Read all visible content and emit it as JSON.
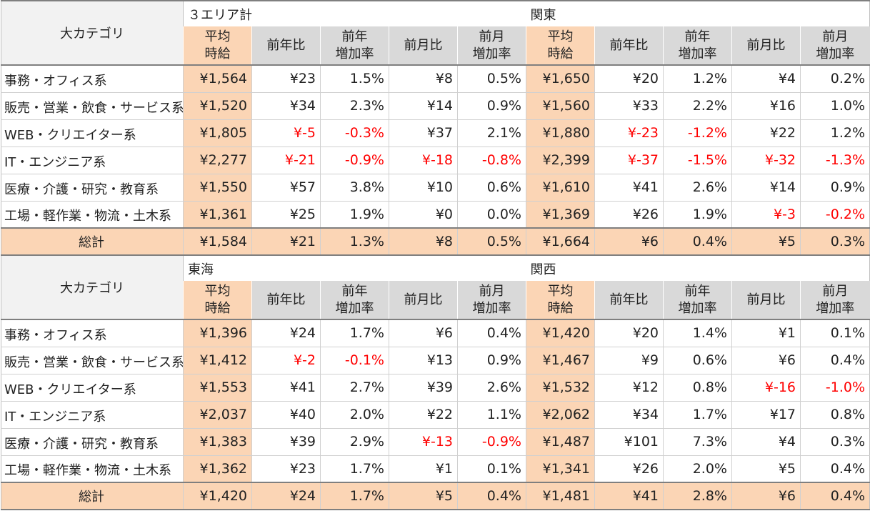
{
  "header": {
    "category_label": "大カテゴリ",
    "sub_headers": [
      "平均\n時給",
      "前年比",
      "前年\n増加率",
      "前月比",
      "前月\n増加率"
    ],
    "total_label": "総計"
  },
  "sections": [
    {
      "areas": [
        "３エリア計",
        "関東"
      ],
      "rows": [
        {
          "label": "事務・オフィス系",
          "values": [
            "¥1,564",
            "¥23",
            "1.5%",
            "¥8",
            "0.5%",
            "¥1,650",
            "¥20",
            "1.2%",
            "¥4",
            "0.2%"
          ]
        },
        {
          "label": "販売・営業・飲食・サービス系",
          "values": [
            "¥1,520",
            "¥34",
            "2.3%",
            "¥14",
            "0.9%",
            "¥1,560",
            "¥33",
            "2.2%",
            "¥16",
            "1.0%"
          ]
        },
        {
          "label": "WEB・クリエイター系",
          "values": [
            "¥1,805",
            "¥-5",
            "-0.3%",
            "¥37",
            "2.1%",
            "¥1,880",
            "¥-23",
            "-1.2%",
            "¥22",
            "1.2%"
          ]
        },
        {
          "label": "IT・エンジニア系",
          "values": [
            "¥2,277",
            "¥-21",
            "-0.9%",
            "¥-18",
            "-0.8%",
            "¥2,399",
            "¥-37",
            "-1.5%",
            "¥-32",
            "-1.3%"
          ]
        },
        {
          "label": "医療・介護・研究・教育系",
          "values": [
            "¥1,550",
            "¥57",
            "3.8%",
            "¥10",
            "0.6%",
            "¥1,610",
            "¥41",
            "2.6%",
            "¥14",
            "0.9%"
          ]
        },
        {
          "label": "工場・軽作業・物流・土木系",
          "values": [
            "¥1,361",
            "¥25",
            "1.9%",
            "¥0",
            "0.0%",
            "¥1,369",
            "¥26",
            "1.9%",
            "¥-3",
            "-0.2%"
          ]
        }
      ],
      "total": [
        "¥1,584",
        "¥21",
        "1.3%",
        "¥8",
        "0.5%",
        "¥1,664",
        "¥6",
        "0.4%",
        "¥5",
        "0.3%"
      ]
    },
    {
      "areas": [
        "東海",
        "関西"
      ],
      "rows": [
        {
          "label": "事務・オフィス系",
          "values": [
            "¥1,396",
            "¥24",
            "1.7%",
            "¥6",
            "0.4%",
            "¥1,420",
            "¥20",
            "1.4%",
            "¥1",
            "0.1%"
          ]
        },
        {
          "label": "販売・営業・飲食・サービス系",
          "values": [
            "¥1,412",
            "¥-2",
            "-0.1%",
            "¥13",
            "0.9%",
            "¥1,467",
            "¥9",
            "0.6%",
            "¥6",
            "0.4%"
          ]
        },
        {
          "label": "WEB・クリエイター系",
          "values": [
            "¥1,553",
            "¥41",
            "2.7%",
            "¥39",
            "2.6%",
            "¥1,532",
            "¥12",
            "0.8%",
            "¥-16",
            "-1.0%"
          ]
        },
        {
          "label": "IT・エンジニア系",
          "values": [
            "¥2,037",
            "¥40",
            "2.0%",
            "¥22",
            "1.1%",
            "¥2,062",
            "¥34",
            "1.7%",
            "¥17",
            "0.8%"
          ]
        },
        {
          "label": "医療・介護・研究・教育系",
          "values": [
            "¥1,383",
            "¥39",
            "2.9%",
            "¥-13",
            "-0.9%",
            "¥1,487",
            "¥101",
            "7.3%",
            "¥4",
            "0.3%"
          ]
        },
        {
          "label": "工場・軽作業・物流・土木系",
          "values": [
            "¥1,362",
            "¥23",
            "1.7%",
            "¥1",
            "0.1%",
            "¥1,341",
            "¥26",
            "2.0%",
            "¥5",
            "0.4%"
          ]
        }
      ],
      "total": [
        "¥1,420",
        "¥24",
        "1.7%",
        "¥5",
        "0.4%",
        "¥1,481",
        "¥41",
        "2.8%",
        "¥6",
        "0.4%"
      ]
    }
  ],
  "colors": {
    "highlight": "#fbd5b5",
    "header_gray": "#d9d9d9",
    "negative": "#ff0000"
  }
}
